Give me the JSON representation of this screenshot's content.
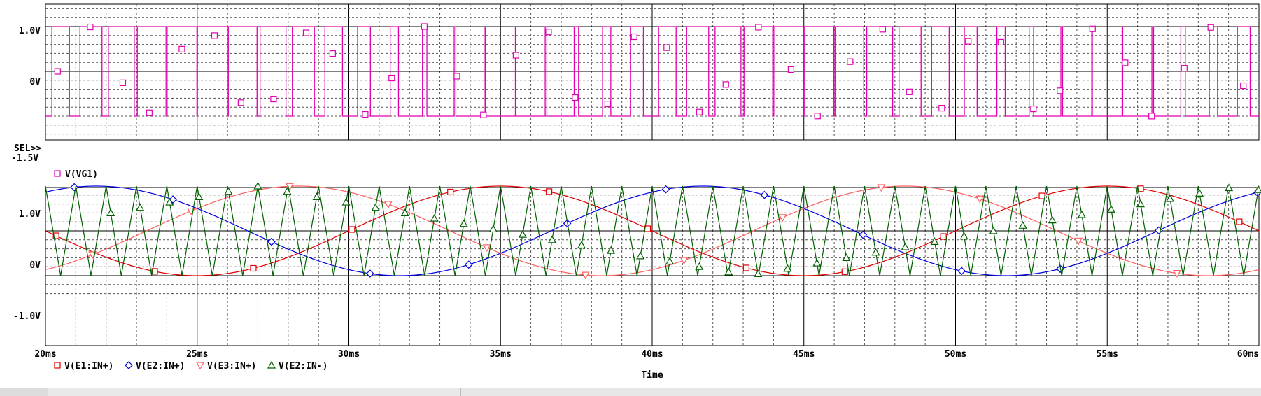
{
  "chart_data": [
    {
      "type": "line",
      "title": "",
      "xlabel": "",
      "ylabel": "",
      "xlim": [
        20,
        60
      ],
      "ylim": [
        -1.5,
        1.5
      ],
      "x_unit": "ms",
      "y_ticks": [
        {
          "value": 1.0,
          "label": "1.0V"
        },
        {
          "value": 0.0,
          "label": "0V"
        }
      ],
      "bottom_label": "-1.5V",
      "selector_label": "SEL>>",
      "grid": true,
      "series": [
        {
          "name": "V(VG1)",
          "color": "#e000b0",
          "marker": "square",
          "shape": "pwm",
          "high": 1.0,
          "low": -1.0,
          "carrier_hz": 1000,
          "reference_hz": 50
        }
      ],
      "legend": [
        {
          "marker": "square",
          "label": "V(VG1)",
          "color": "#e000b0"
        }
      ]
    },
    {
      "type": "line",
      "title": "",
      "xlabel": "Time",
      "ylabel": "",
      "xlim": [
        20,
        60
      ],
      "ylim": [
        -1.5,
        1.5
      ],
      "x_ticks": [
        {
          "value": 20,
          "label": "20ms"
        },
        {
          "value": 25,
          "label": "25ms"
        },
        {
          "value": 30,
          "label": "30ms"
        },
        {
          "value": 35,
          "label": "35ms"
        },
        {
          "value": 40,
          "label": "40ms"
        },
        {
          "value": 45,
          "label": "45ms"
        },
        {
          "value": 50,
          "label": "50ms"
        },
        {
          "value": 55,
          "label": "55ms"
        },
        {
          "value": 60,
          "label": "60ms"
        }
      ],
      "y_ticks": [
        {
          "value": 1.0,
          "label": "1.0V"
        },
        {
          "value": 0.0,
          "label": "0V"
        },
        {
          "value": -1.0,
          "label": "-1.0V"
        }
      ],
      "grid": true,
      "series": [
        {
          "name": "V(E1:IN+)",
          "color": "#e00000",
          "marker": "square",
          "shape": "sine",
          "amplitude": 1.0,
          "freq_hz": 50,
          "phase_deg": 180
        },
        {
          "name": "V(E2:IN+)",
          "color": "#0000e0",
          "marker": "diamond",
          "shape": "sine",
          "amplitude": 1.0,
          "freq_hz": 50,
          "phase_deg": 60
        },
        {
          "name": "V(E3:IN+)",
          "color": "#ff6060",
          "marker": "triangle-down",
          "shape": "sine",
          "amplitude": 1.0,
          "freq_hz": 50,
          "phase_deg": 300
        },
        {
          "name": "V(E2:IN-)",
          "color": "#006000",
          "marker": "triangle-up",
          "shape": "triangle",
          "amplitude": 1.0,
          "freq_hz": 1000
        }
      ],
      "legend": [
        {
          "marker": "square",
          "label": "V(E1:IN+)",
          "color": "#e00000"
        },
        {
          "marker": "diamond",
          "label": "V(E2:IN+)",
          "color": "#0000e0"
        },
        {
          "marker": "triangle-down",
          "label": "V(E3:IN+)",
          "color": "#ff6060"
        },
        {
          "marker": "triangle-up",
          "label": "V(E2:IN-)",
          "color": "#006000"
        }
      ]
    }
  ]
}
